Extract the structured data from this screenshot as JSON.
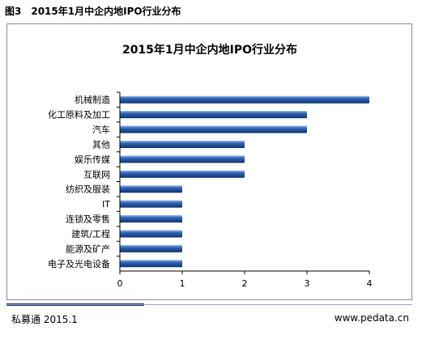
{
  "caption": "图3　2015年1月中企内地IPO行业分布",
  "footer": {
    "source": "私募通  2015.1",
    "site": "www.pedata.cn"
  },
  "colors": {
    "bar": "#1f4f9a",
    "bar_light": "#7fa6e0",
    "axis": "#000000"
  },
  "chart_data": {
    "type": "bar",
    "orientation": "horizontal",
    "title": "2015年1月中企内地IPO行业分布",
    "categories": [
      "机械制造",
      "化工原料及加工",
      "汽车",
      "其他",
      "娱乐传媒",
      "互联网",
      "纺织及服装",
      "IT",
      "连锁及零售",
      "建筑/工程",
      "能源及矿产",
      "电子及光电设备"
    ],
    "values": [
      4,
      3,
      3,
      2,
      2,
      2,
      1,
      1,
      1,
      1,
      1,
      1
    ],
    "xlim": [
      0,
      4
    ],
    "xticks": [
      "0",
      "1",
      "2",
      "3",
      "4"
    ],
    "xlabel": "",
    "ylabel": "",
    "grid": false,
    "legend": "none"
  }
}
